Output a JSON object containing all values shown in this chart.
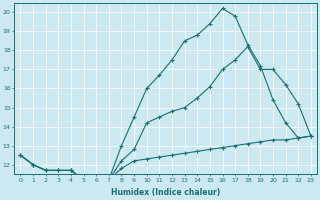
{
  "xlabel": "Humidex (Indice chaleur)",
  "bg_color": "#cce8f0",
  "line_color": "#1a7070",
  "xlim": [
    -0.5,
    23.5
  ],
  "ylim": [
    11.5,
    20.5
  ],
  "yticks": [
    12,
    13,
    14,
    15,
    16,
    17,
    18,
    19,
    20
  ],
  "curve1_x": [
    0,
    1,
    2,
    3,
    4,
    5,
    6,
    7,
    8,
    9,
    10,
    11,
    12,
    13,
    14,
    15,
    16,
    17,
    18,
    19,
    20,
    21,
    22,
    23
  ],
  "curve1_y": [
    12.5,
    12.0,
    11.7,
    11.7,
    11.7,
    11.2,
    11.2,
    11.2,
    13.0,
    14.5,
    16.0,
    16.7,
    17.5,
    18.5,
    18.8,
    19.4,
    20.2,
    19.8,
    18.3,
    17.2,
    15.4,
    14.2,
    13.4,
    13.5
  ],
  "curve2_x": [
    0,
    1,
    2,
    3,
    4,
    5,
    6,
    7,
    8,
    9,
    10,
    11,
    12,
    13,
    14,
    15,
    16,
    17,
    18,
    19,
    20,
    21,
    22,
    23
  ],
  "curve2_y": [
    12.5,
    12.0,
    11.7,
    11.7,
    11.7,
    11.2,
    11.2,
    11.2,
    11.8,
    12.2,
    12.3,
    12.4,
    12.5,
    12.6,
    12.7,
    12.8,
    12.9,
    13.0,
    13.1,
    13.2,
    13.3,
    13.3,
    13.4,
    13.5
  ],
  "curve3_x": [
    0,
    1,
    2,
    3,
    4,
    5,
    6,
    7,
    8,
    9,
    10,
    11,
    12,
    13,
    14,
    15,
    16,
    17,
    18,
    19,
    20,
    21,
    22,
    23
  ],
  "curve3_y": [
    12.5,
    12.0,
    11.7,
    11.7,
    11.7,
    11.2,
    11.2,
    11.2,
    12.2,
    12.8,
    14.2,
    14.5,
    14.8,
    15.0,
    15.5,
    16.1,
    17.0,
    17.5,
    18.2,
    17.0,
    17.0,
    16.2,
    15.2,
    13.5
  ]
}
